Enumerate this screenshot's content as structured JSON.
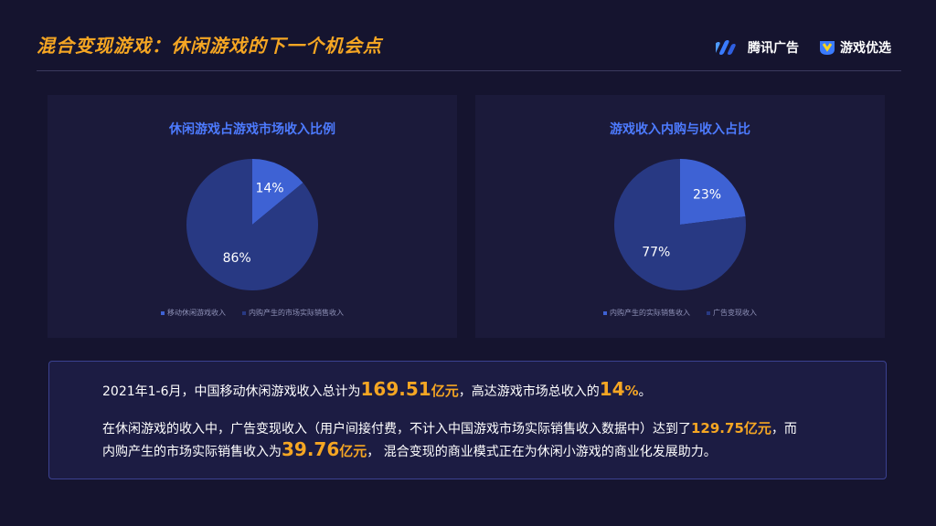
{
  "header": {
    "title": "混合变现游戏：休闲游戏的下一个机会点",
    "logo_tencent": "腾讯广告",
    "logo_game": "游戏优选"
  },
  "colors": {
    "accent": "#f5a623",
    "title_blue": "#4d7bff",
    "slice_light": "#3e62d4",
    "slice_dark": "#283983"
  },
  "charts": [
    {
      "title": "休闲游戏占游戏市场收入比例",
      "labels": [
        "14%",
        "86%"
      ],
      "legend": [
        "移动休闲游戏收入",
        "内购产生的市场实际销售收入"
      ]
    },
    {
      "title": "游戏收入内购与收入占比",
      "labels": [
        "23%",
        "77%"
      ],
      "legend": [
        "内购产生的实际销售收入",
        "广告变现收入"
      ]
    }
  ],
  "chart_data": [
    {
      "type": "pie",
      "title": "休闲游戏占游戏市场收入比例",
      "categories": [
        "移动休闲游戏收入",
        "内购产生的市场实际销售收入"
      ],
      "values": [
        14,
        86
      ]
    },
    {
      "type": "pie",
      "title": "游戏收入内购与收入占比",
      "categories": [
        "内购产生的实际销售收入",
        "广告变现收入"
      ],
      "values": [
        23,
        77
      ]
    }
  ],
  "info": {
    "l1_a": "2021年1-6月，中国移动休闲游戏收入总计为",
    "l1_v1": "169.51",
    "l1_u1": "亿元",
    "l1_b": "，高达游戏市场总收入的",
    "l1_v2": "14",
    "l1_u2": "%",
    "l1_c": "。",
    "l2_a": "在休闲游戏的收入中，广告变现收入（用户间接付费，不计入中国游戏市场实际销售收入数据中）达到了",
    "l2_v": "129.75亿元",
    "l2_b": "，而",
    "l3_a": "内购产生的市场实际销售收入为",
    "l3_v": "39.76",
    "l3_u": "亿元",
    "l3_b": "， 混合变现的商业模式正在为休闲小游戏的商业化发展助力。"
  }
}
